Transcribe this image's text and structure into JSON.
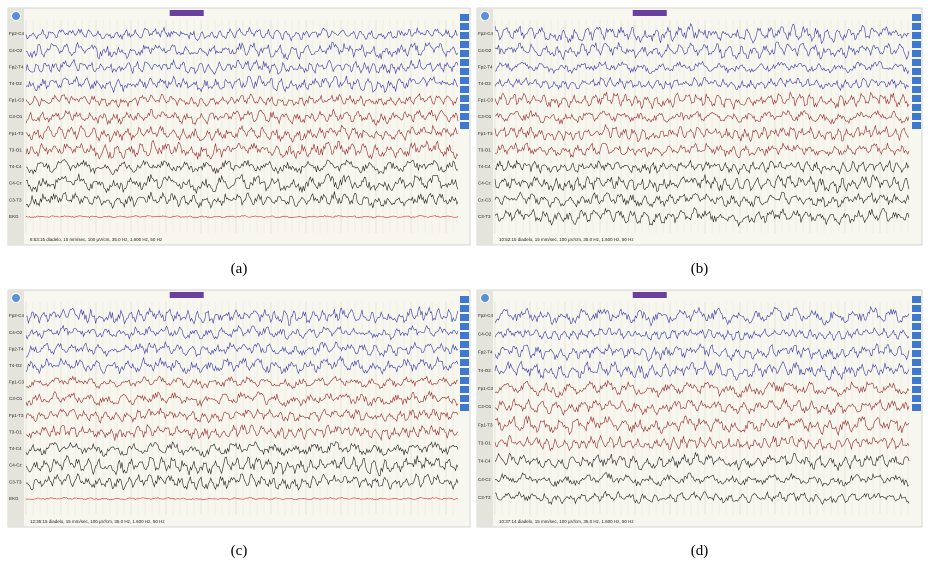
{
  "panels": [
    {
      "label": "(a)",
      "status": "8:53:15 diadelo, 15 mm/sec, 100 µV/cm, 35.0 Hz, 1.600 Hz, 50 Hz",
      "channels": [
        {
          "name": "Fp2-C4",
          "color": "#3a3aa8"
        },
        {
          "name": "C4-O2",
          "color": "#3a3aa8"
        },
        {
          "name": "Fp2-T4",
          "color": "#3a3aa8"
        },
        {
          "name": "T4-O2",
          "color": "#3a3aa8"
        },
        {
          "name": "Fp1-C3",
          "color": "#9a2b2b"
        },
        {
          "name": "C3-O1",
          "color": "#9a2b2b"
        },
        {
          "name": "Fp1-T3",
          "color": "#9a2b2b"
        },
        {
          "name": "T3-O1",
          "color": "#9a2b2b"
        },
        {
          "name": "T4-C4",
          "color": "#222222"
        },
        {
          "name": "C4-Cz",
          "color": "#222222"
        },
        {
          "name": "C3-T3",
          "color": "#222222"
        },
        {
          "name": "EKG",
          "color": "#e03030"
        }
      ]
    },
    {
      "label": "(b)",
      "status": "10:52:15 diadelo, 15 mm/sec, 100 µV/cm, 35.0 Hz, 1.600 Hz, 50 Hz",
      "channels": [
        {
          "name": "Fp2-C4",
          "color": "#3a3aa8"
        },
        {
          "name": "C4-O2",
          "color": "#3a3aa8"
        },
        {
          "name": "Fp2-T4",
          "color": "#3a3aa8"
        },
        {
          "name": "T4-O2",
          "color": "#3a3aa8"
        },
        {
          "name": "Fp1-C3",
          "color": "#9a2b2b"
        },
        {
          "name": "C3-O1",
          "color": "#9a2b2b"
        },
        {
          "name": "Fp1-T3",
          "color": "#9a2b2b"
        },
        {
          "name": "T3-O1",
          "color": "#9a2b2b"
        },
        {
          "name": "T4-C4",
          "color": "#222222"
        },
        {
          "name": "C4-Cz",
          "color": "#222222"
        },
        {
          "name": "Cz-C3",
          "color": "#222222"
        },
        {
          "name": "C3-T3",
          "color": "#222222"
        }
      ]
    },
    {
      "label": "(c)",
      "status": "12:35:15 diadelo, 15 mm/sec, 100 µV/cm, 35.0 Hz, 1.600 Hz, 50 Hz",
      "channels": [
        {
          "name": "Fp2-C4",
          "color": "#3a3aa8"
        },
        {
          "name": "C4-O2",
          "color": "#3a3aa8"
        },
        {
          "name": "Fp2-T4",
          "color": "#3a3aa8"
        },
        {
          "name": "T4-O2",
          "color": "#3a3aa8"
        },
        {
          "name": "Fp1-C3",
          "color": "#9a2b2b"
        },
        {
          "name": "C3-O1",
          "color": "#9a2b2b"
        },
        {
          "name": "Fp1-T3",
          "color": "#9a2b2b"
        },
        {
          "name": "T3-O1",
          "color": "#9a2b2b"
        },
        {
          "name": "T4-C4",
          "color": "#222222"
        },
        {
          "name": "C4-Cz",
          "color": "#222222"
        },
        {
          "name": "C3-T3",
          "color": "#222222"
        },
        {
          "name": "EKG",
          "color": "#e03030"
        }
      ]
    },
    {
      "label": "(d)",
      "status": "10:37:14 diadelo, 15 mm/sec, 100 µV/cm, 35.0 Hz, 1.600 Hz, 50 Hz",
      "channels": [
        {
          "name": "Fp2-C4",
          "color": "#3a3aa8"
        },
        {
          "name": "C4-O2",
          "color": "#3a3aa8"
        },
        {
          "name": "Fp2-T4",
          "color": "#3a3aa8"
        },
        {
          "name": "T4-O2",
          "color": "#3a3aa8"
        },
        {
          "name": "Fp1-C3",
          "color": "#9a2b2b"
        },
        {
          "name": "C3-O1",
          "color": "#9a2b2b"
        },
        {
          "name": "Fp1-T3",
          "color": "#9a2b2b"
        },
        {
          "name": "T3-O1",
          "color": "#9a2b2b"
        },
        {
          "name": "T4-C4",
          "color": "#222222"
        },
        {
          "name": "C4-Cz",
          "color": "#222222"
        },
        {
          "name": "C3-T3",
          "color": "#222222"
        }
      ]
    }
  ]
}
